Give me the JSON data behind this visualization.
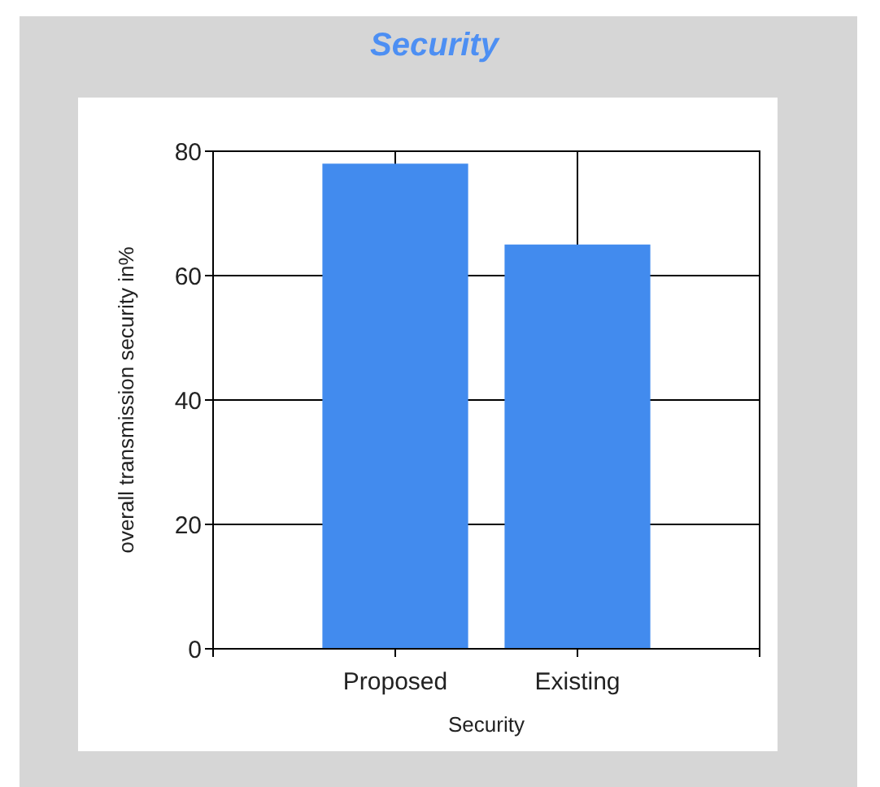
{
  "chart_data": {
    "type": "bar",
    "title": "Security",
    "xlabel": "Security",
    "ylabel": "overall transmission security in%",
    "categories": [
      "Proposed",
      "Existing"
    ],
    "values": [
      78,
      65
    ],
    "color": "#428bee",
    "ylim": [
      0,
      80
    ],
    "yticks": [
      0,
      20,
      40,
      60,
      80
    ],
    "grid": true
  }
}
